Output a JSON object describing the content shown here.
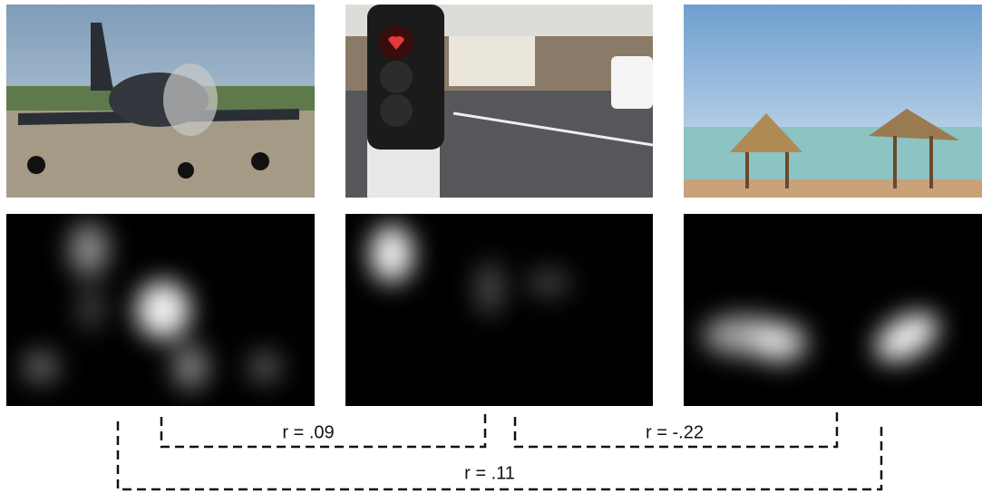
{
  "correlations": [
    "r = .09",
    "r = -.22",
    "r = .11"
  ]
}
